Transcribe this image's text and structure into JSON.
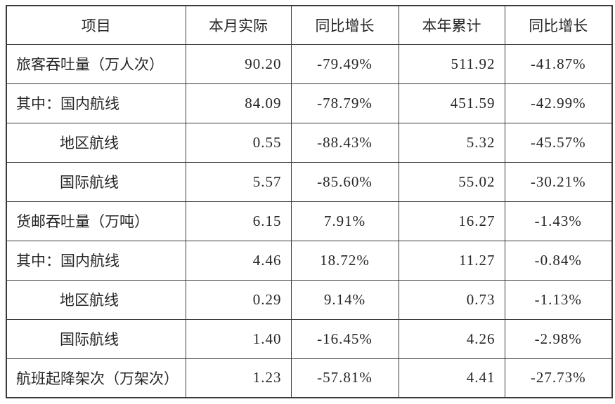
{
  "page": {
    "background_color": "#ffffff",
    "border_color": "#3a3a3a",
    "text_color": "#262626"
  },
  "chart_data": {
    "type": "table",
    "columns": [
      "项目",
      "本月实际",
      "同比增长",
      "本年累计",
      "同比增长"
    ],
    "rows": [
      [
        "旅客吞吐量（万人次）",
        "90.20",
        "-79.49%",
        "511.92",
        "-41.87%"
      ],
      [
        "其中：国内航线",
        "84.09",
        "-78.79%",
        "451.59",
        "-42.99%"
      ],
      [
        "地区航线",
        "0.55",
        "-88.43%",
        "5.32",
        "-45.57%"
      ],
      [
        "国际航线",
        "5.57",
        "-85.60%",
        "55.02",
        "-30.21%"
      ],
      [
        "货邮吞吐量（万吨）",
        "6.15",
        "7.91%",
        "16.27",
        "-1.43%"
      ],
      [
        "其中：国内航线",
        "4.46",
        "18.72%",
        "11.27",
        "-0.84%"
      ],
      [
        "地区航线",
        "0.29",
        "9.14%",
        "0.73",
        "-1.13%"
      ],
      [
        "国际航线",
        "1.40",
        "-16.45%",
        "4.26",
        "-2.98%"
      ],
      [
        "航班起降架次（万架次）",
        "1.23",
        "-57.81%",
        "4.41",
        "-27.73%"
      ]
    ],
    "indented_row_indices": [
      2,
      3,
      6,
      7
    ],
    "value_column_alignments": [
      "right",
      "center",
      "right",
      "center"
    ]
  }
}
